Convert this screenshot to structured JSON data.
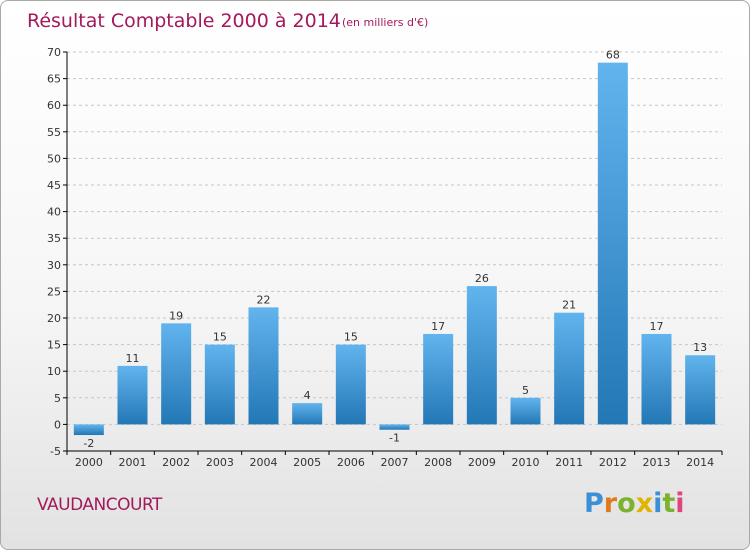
{
  "chart_data": {
    "type": "bar",
    "title": "Résultat Comptable 2000 à 2014",
    "subtitle": "(en milliers d'€)",
    "categories": [
      "2000",
      "2001",
      "2002",
      "2003",
      "2004",
      "2005",
      "2006",
      "2007",
      "2008",
      "2009",
      "2010",
      "2011",
      "2012",
      "2013",
      "2014"
    ],
    "values": [
      -2,
      11,
      19,
      15,
      22,
      4,
      15,
      -1,
      17,
      26,
      5,
      21,
      68,
      17,
      13
    ],
    "ylim": [
      -5,
      70
    ],
    "yticks": [
      -5,
      0,
      5,
      10,
      15,
      20,
      25,
      30,
      35,
      40,
      45,
      50,
      55,
      60,
      65,
      70
    ],
    "grid": true,
    "xlabel": "",
    "ylabel": ""
  },
  "place": {
    "name": "VAUDANCOURT"
  },
  "brand": {
    "name": "Proxiti",
    "letters": [
      {
        "ch": "P",
        "color": "#3b8fd6"
      },
      {
        "ch": "r",
        "color": "#e07a1f"
      },
      {
        "ch": "o",
        "color": "#7bb32e"
      },
      {
        "ch": "x",
        "color": "#e0b400"
      },
      {
        "ch": "i",
        "color": "#3b8fd6"
      },
      {
        "ch": "t",
        "color": "#7bb32e"
      },
      {
        "ch": "i",
        "color": "#e0467a"
      }
    ]
  },
  "colors": {
    "title": "#a3195b",
    "bar_light": "#62b4ee",
    "bar_dark": "#2277b5",
    "grid": "#c6c6c6",
    "axis": "#000000"
  }
}
